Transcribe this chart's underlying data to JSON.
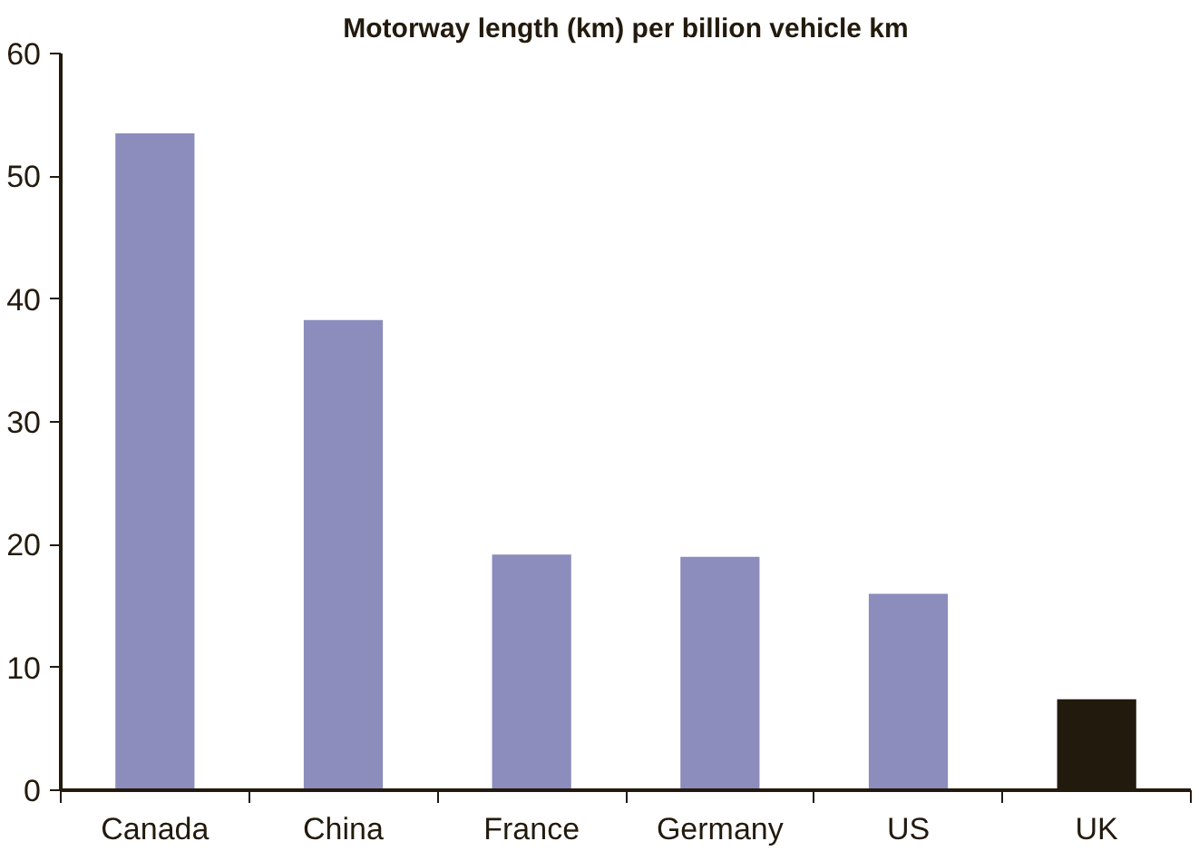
{
  "chart_data": {
    "type": "bar",
    "title": "Motorway length (km) per billion vehicle km",
    "categories": [
      "Canada",
      "China",
      "France",
      "Germany",
      "US",
      "UK"
    ],
    "values": [
      53.5,
      38.3,
      19.2,
      19.0,
      16.0,
      7.4
    ],
    "colors": [
      "#8c8cbd",
      "#8c8cbd",
      "#8c8cbd",
      "#8c8cbd",
      "#8c8cbd",
      "#231a0e"
    ],
    "ylim": [
      0,
      60
    ],
    "yticks": [
      0,
      10,
      20,
      30,
      40,
      50,
      60
    ],
    "grid": false
  }
}
